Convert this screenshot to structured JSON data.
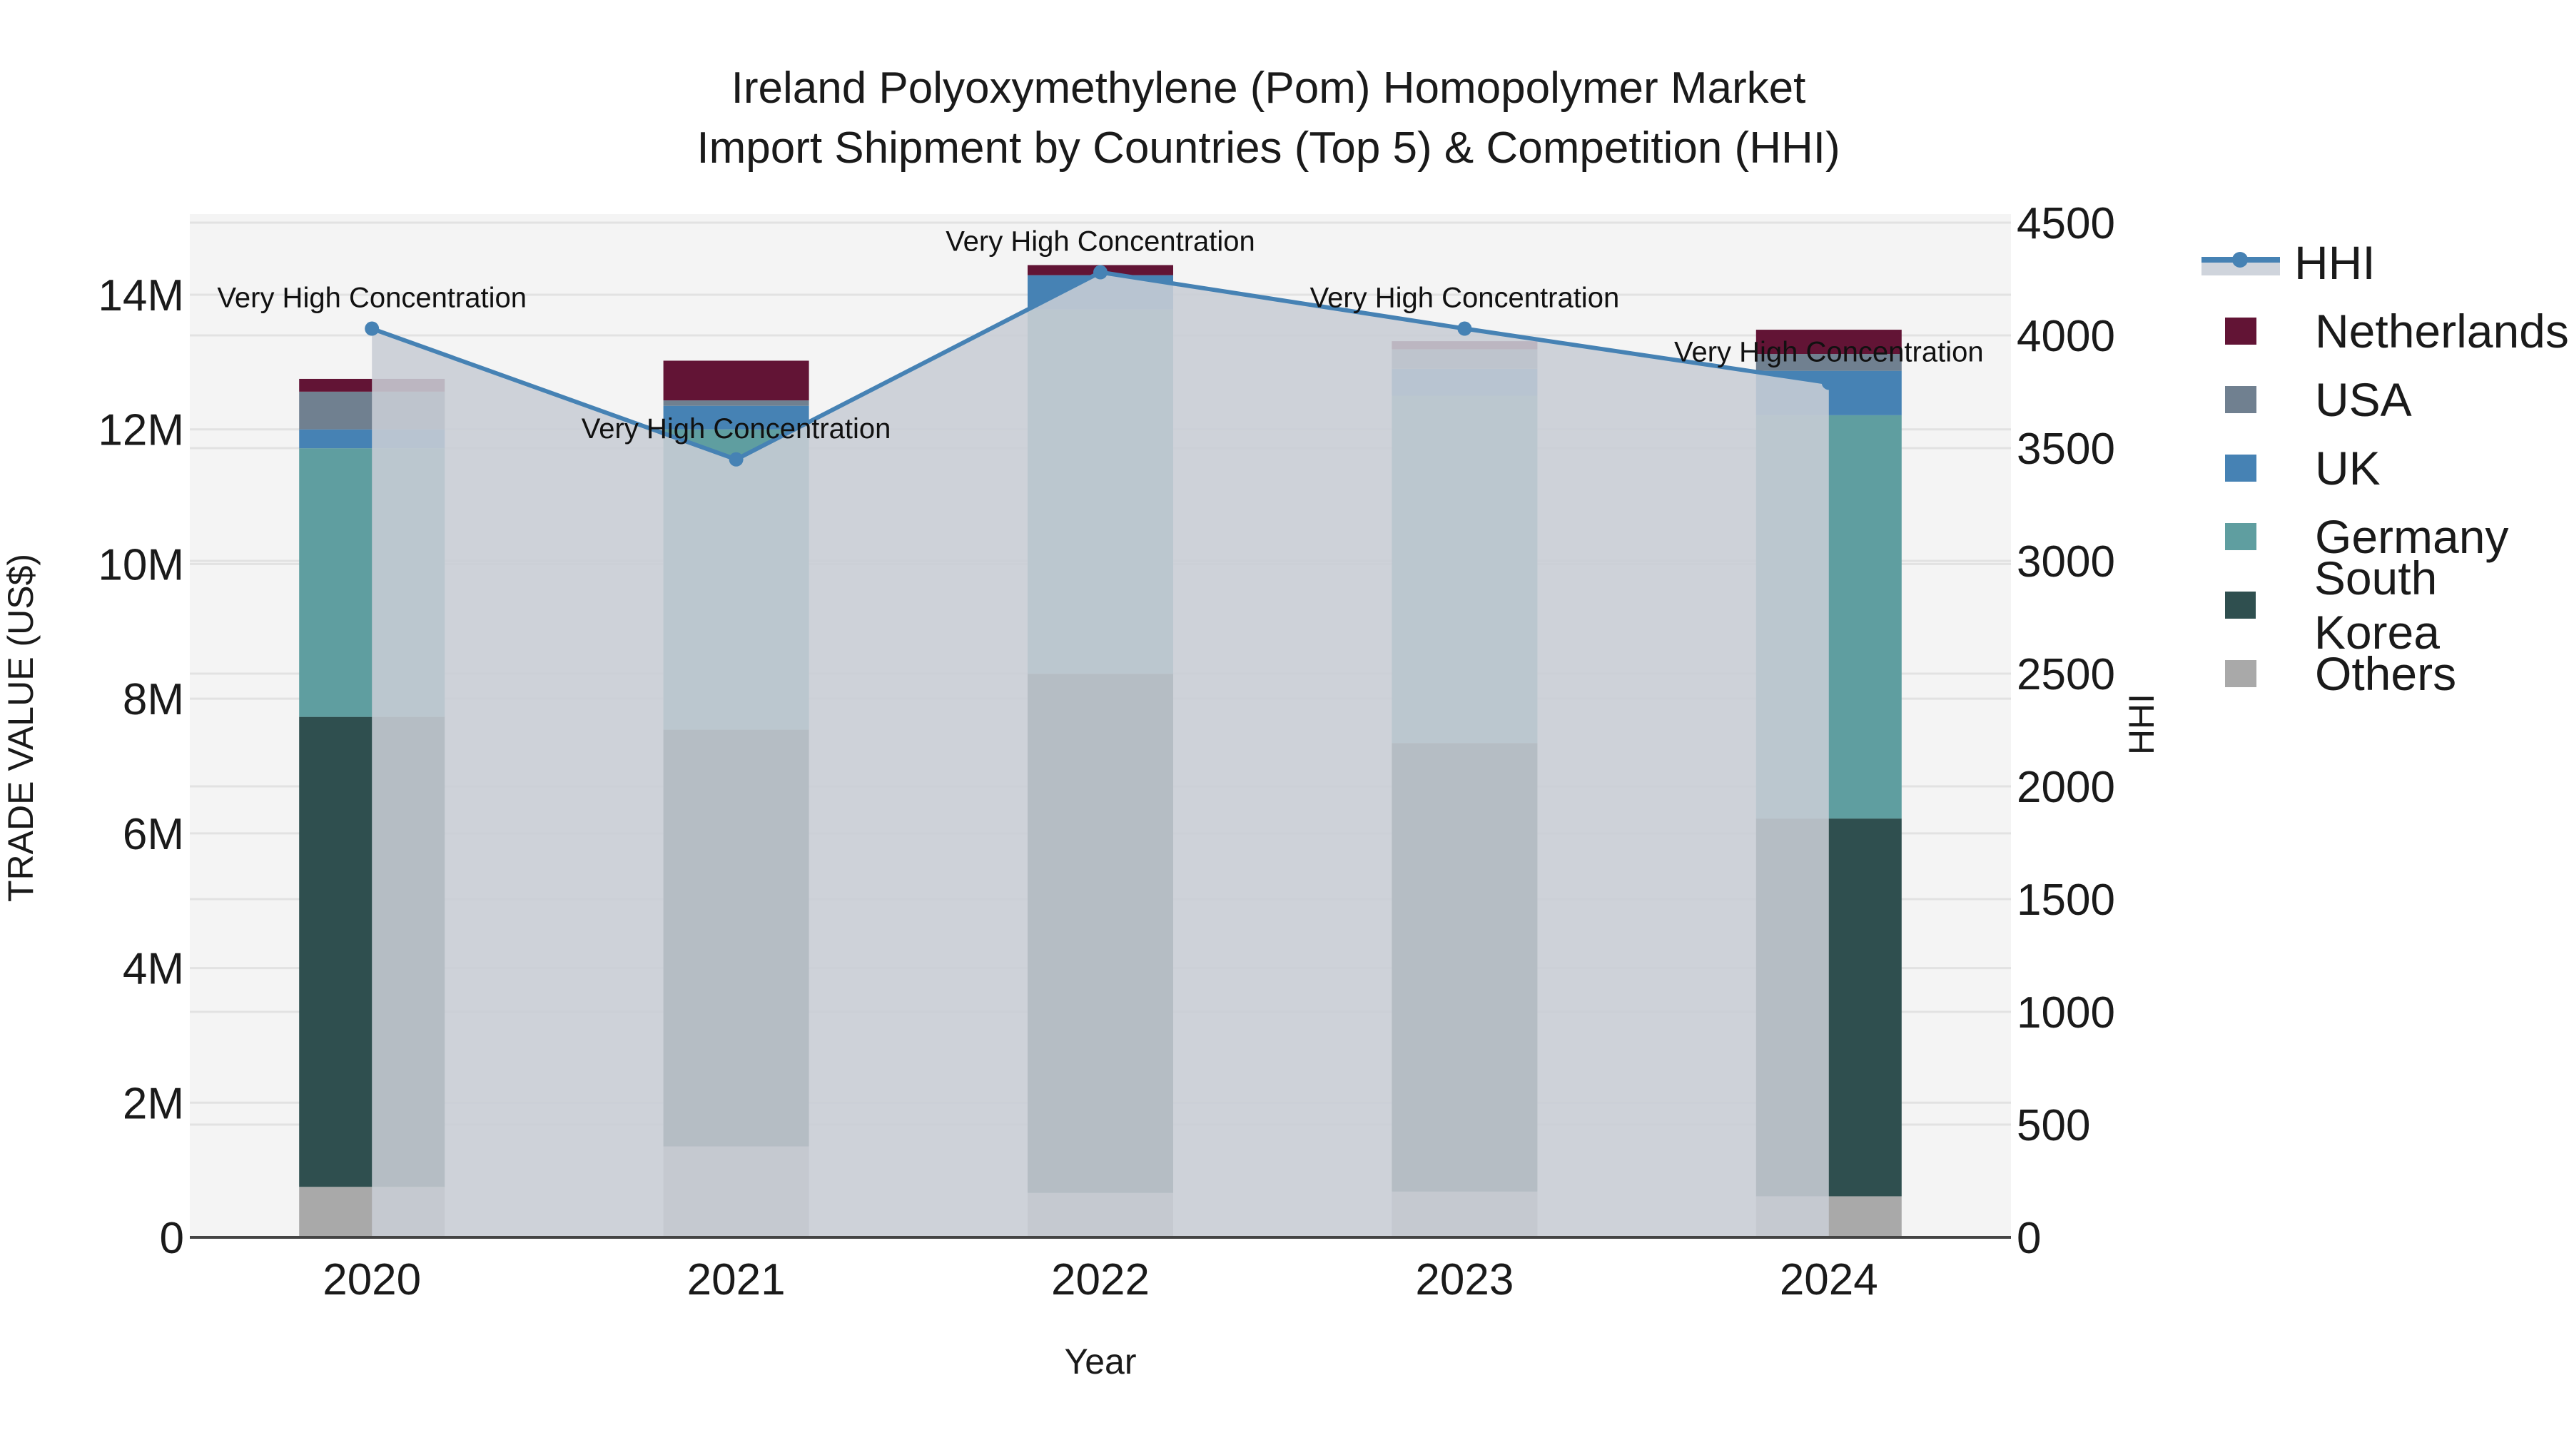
{
  "title": {
    "line1": "Ireland Polyoxymethylene (Pom) Homopolymer Market",
    "line2": "Import Shipment by Countries (Top 5) & Competition (HHI)"
  },
  "axes": {
    "x_label": "Year",
    "y_left_label": "TRADE VALUE (US$)",
    "y_right_label": "HHI",
    "y_left_ticks": [
      "0",
      "2M",
      "4M",
      "6M",
      "8M",
      "10M",
      "12M",
      "14M"
    ],
    "y_right_ticks": [
      "0",
      "500",
      "1000",
      "1500",
      "2000",
      "2500",
      "3000",
      "3500",
      "4000",
      "4500"
    ],
    "x_ticks": [
      "2020",
      "2021",
      "2022",
      "2023",
      "2024"
    ]
  },
  "legend": [
    {
      "name": "HHI",
      "type": "line",
      "color": "#4682b4"
    },
    {
      "name": "Netherlands",
      "type": "bar",
      "color": "#621435"
    },
    {
      "name": "USA",
      "type": "bar",
      "color": "#708090"
    },
    {
      "name": "UK",
      "type": "bar",
      "color": "#4682b4"
    },
    {
      "name": "Germany",
      "type": "bar",
      "color": "#5f9ea0"
    },
    {
      "name": "South Korea",
      "type": "bar",
      "color": "#2f4f4f"
    },
    {
      "name": "Others",
      "type": "bar",
      "color": "#a9a9a9"
    }
  ],
  "annotations": [
    "Very High Concentration",
    "Very High Concentration",
    "Very High Concentration",
    "Very High Concentration",
    "Very High Concentration"
  ],
  "colors": {
    "plot_bg": "#f4f4f4",
    "hhi_fill": "#c8cdd5",
    "hhi_line": "#4682b4",
    "grid": "#e2e2e2"
  },
  "chart_data": {
    "type": "bar",
    "stacked": true,
    "title": "Ireland Polyoxymethylene (Pom) Homopolymer Market Import Shipment by Countries (Top 5) & Competition (HHI)",
    "xlabel": "Year",
    "ylabel": "TRADE VALUE (US$)",
    "y2label": "HHI",
    "categories": [
      "2020",
      "2021",
      "2022",
      "2023",
      "2024"
    ],
    "ylim": [
      0,
      15000000
    ],
    "y2lim": [
      0,
      4500
    ],
    "series": [
      {
        "name": "Others",
        "values": [
          750000,
          1350000,
          660000,
          680000,
          610000
        ]
      },
      {
        "name": "South Korea",
        "values": [
          6980000,
          6190000,
          7710000,
          6660000,
          5610000
        ]
      },
      {
        "name": "Germany",
        "values": [
          3990000,
          4460000,
          5410000,
          5160000,
          5990000
        ]
      },
      {
        "name": "UK",
        "values": [
          280000,
          350000,
          510000,
          400000,
          660000
        ]
      },
      {
        "name": "USA",
        "values": [
          560000,
          80000,
          0,
          290000,
          250000
        ]
      },
      {
        "name": "Netherlands",
        "values": [
          190000,
          590000,
          150000,
          120000,
          360000
        ]
      }
    ],
    "line_series": {
      "name": "HHI",
      "axis": "y2",
      "values": [
        4030,
        3450,
        4280,
        4030,
        3790
      ]
    },
    "annotations": [
      {
        "x": "2020",
        "text": "Very High Concentration"
      },
      {
        "x": "2021",
        "text": "Very High Concentration"
      },
      {
        "x": "2022",
        "text": "Very High Concentration"
      },
      {
        "x": "2023",
        "text": "Very High Concentration"
      },
      {
        "x": "2024",
        "text": "Very High Concentration"
      }
    ],
    "grid": true,
    "legend_position": "right"
  }
}
